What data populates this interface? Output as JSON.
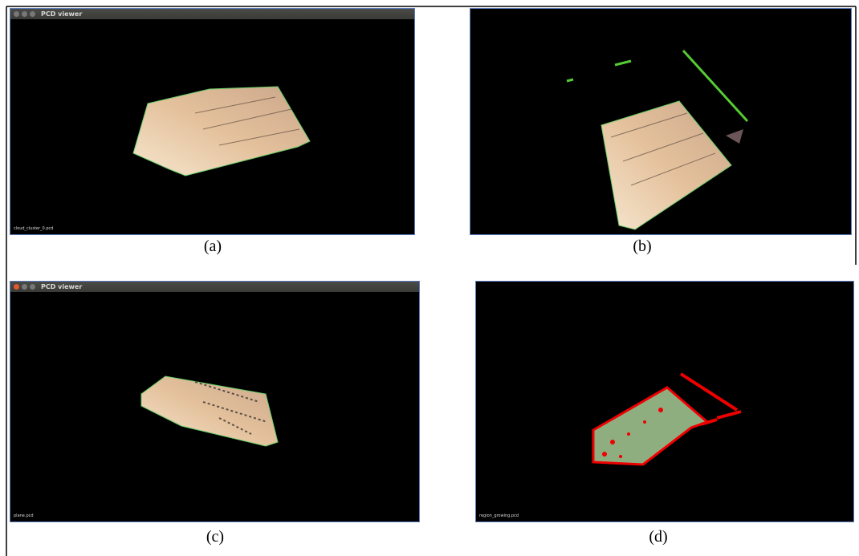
{
  "panels": [
    {
      "window_title": "PCD viewer",
      "file_label": "cloud_cluster_0.pcd",
      "caption": "(a)"
    },
    {
      "caption": "(b)"
    },
    {
      "window_title": "PCD viewer",
      "file_label": "plane.pcd",
      "caption": "(c)"
    },
    {
      "file_label": "region_growing.pcd",
      "caption": "(d)"
    }
  ]
}
